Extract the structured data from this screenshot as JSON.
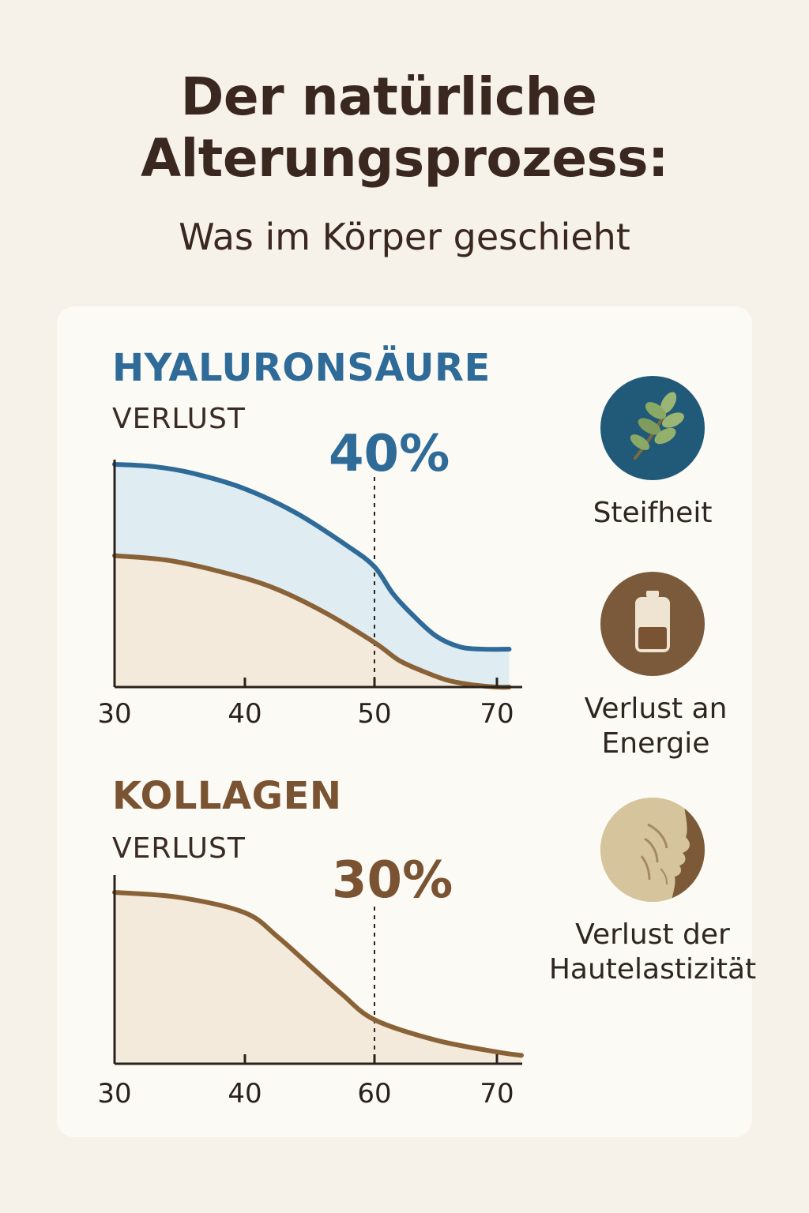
{
  "title": {
    "line1": "Der natürliche",
    "line2": "Alterungsprozess:",
    "subtitle": "Was im Körper geschieht"
  },
  "colors": {
    "background": "#f6f2e9",
    "card": "#fcfaf5",
    "hyaluron_blue": "#2f6b98",
    "hyaluron_fill": "#dfedf3",
    "kollagen_brown": "#8a6237",
    "kollagen_fill": "#f4eadb"
  },
  "chart_data": [
    {
      "type": "area",
      "title": "HYALURONSÄURE",
      "ylabel": "VERLUST",
      "annotation": "40%",
      "marker_x": 50,
      "x_ticks": [
        30,
        40,
        50,
        70
      ],
      "x_range": [
        30,
        72
      ],
      "series": [
        {
          "color": "#2f6b98",
          "x": [
            30,
            33,
            36,
            40,
            44,
            48,
            50,
            53,
            56,
            60,
            64,
            68,
            72
          ],
          "y": [
            100,
            99,
            96,
            89,
            78,
            63,
            54,
            42,
            33,
            23,
            18,
            17,
            17
          ]
        },
        {
          "color": "#8a6237",
          "x": [
            30,
            34,
            38,
            42,
            46,
            50,
            54,
            58,
            62,
            66,
            70,
            72
          ],
          "y": [
            59,
            57,
            52,
            45,
            34,
            20,
            12,
            7,
            3,
            1,
            0,
            0
          ]
        }
      ]
    },
    {
      "type": "area",
      "title": "KOLLAGEN",
      "ylabel": "VERLUST",
      "annotation": "30%",
      "marker_x": 60,
      "x_ticks": [
        30,
        40,
        60,
        70
      ],
      "series": [
        {
          "color": "#8a6237",
          "x": [
            30,
            35,
            40,
            45,
            50,
            55,
            60,
            65,
            70,
            72
          ],
          "y": [
            100,
            97,
            88,
            74,
            57,
            40,
            25,
            13,
            6,
            4
          ]
        }
      ]
    }
  ],
  "side_items": [
    {
      "icon": "leaf-icon",
      "label_lines": [
        "Steifheit"
      ]
    },
    {
      "icon": "battery-icon",
      "label_lines": [
        "Verlust an",
        "Energie"
      ]
    },
    {
      "icon": "face-profile-icon",
      "label_lines": [
        "Verlust der",
        "Hautelastizität"
      ]
    }
  ]
}
